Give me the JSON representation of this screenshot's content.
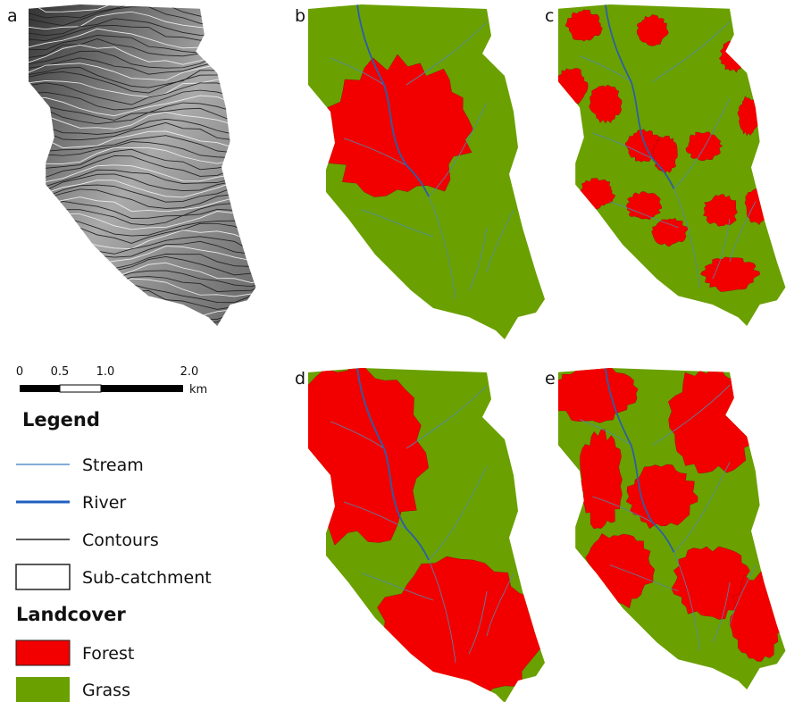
{
  "panels": [
    "a",
    "b",
    "c",
    "d",
    "e"
  ],
  "scale_bar": {
    "labels": [
      "0",
      "0.5",
      "1.0",
      "2.0"
    ],
    "unit": "km"
  },
  "legend": {
    "title": "Legend",
    "items": [
      "Stream",
      "River",
      "Contours",
      "Sub-catchment"
    ]
  },
  "landcover": {
    "title": "Landcover",
    "items": [
      "Forest",
      "Grass"
    ]
  }
}
